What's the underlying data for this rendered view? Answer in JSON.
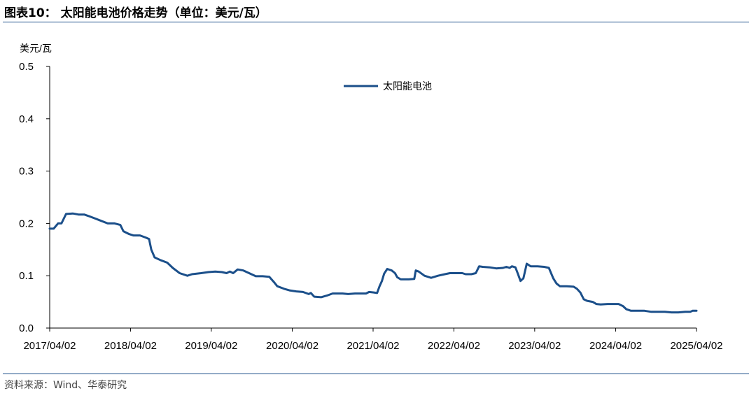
{
  "header": {
    "title": "图表10：   太阳能电池价格走势（单位：美元/瓦）"
  },
  "footer": {
    "source": "资料来源：Wind、华泰研究"
  },
  "chart_data": {
    "type": "line",
    "title": "",
    "ylabel": "美元/瓦",
    "xlabel": "",
    "ylim": [
      0,
      0.5
    ],
    "yticks": [
      "0.0",
      "0.1",
      "0.2",
      "0.3",
      "0.4",
      "0.5"
    ],
    "xlim": [
      "2017-04-02",
      "2025-04-02"
    ],
    "xticks": [
      "2017/04/02",
      "2018/04/02",
      "2019/04/02",
      "2020/04/02",
      "2021/04/02",
      "2022/04/02",
      "2023/04/02",
      "2024/04/02",
      "2025/04/02"
    ],
    "grid": false,
    "legend_position": "top-center",
    "series": [
      {
        "name": "太阳能电池",
        "color": "#1b4f8a",
        "points": [
          [
            "2017-04-02",
            0.19
          ],
          [
            "2017-04-20",
            0.19
          ],
          [
            "2017-05-10",
            0.2
          ],
          [
            "2017-05-25",
            0.2
          ],
          [
            "2017-06-15",
            0.218
          ],
          [
            "2017-07-15",
            0.219
          ],
          [
            "2017-08-10",
            0.217
          ],
          [
            "2017-09-05",
            0.217
          ],
          [
            "2017-09-25",
            0.214
          ],
          [
            "2017-10-20",
            0.21
          ],
          [
            "2017-11-20",
            0.205
          ],
          [
            "2017-12-20",
            0.2
          ],
          [
            "2018-01-20",
            0.2
          ],
          [
            "2018-02-15",
            0.197
          ],
          [
            "2018-03-01",
            0.185
          ],
          [
            "2018-03-25",
            0.18
          ],
          [
            "2018-04-15",
            0.177
          ],
          [
            "2018-05-15",
            0.177
          ],
          [
            "2018-06-10",
            0.173
          ],
          [
            "2018-06-25",
            0.17
          ],
          [
            "2018-07-05",
            0.15
          ],
          [
            "2018-07-20",
            0.135
          ],
          [
            "2018-08-15",
            0.13
          ],
          [
            "2018-09-15",
            0.125
          ],
          [
            "2018-10-10",
            0.115
          ],
          [
            "2018-11-10",
            0.105
          ],
          [
            "2018-12-15",
            0.1
          ],
          [
            "2019-01-05",
            0.103
          ],
          [
            "2019-02-15",
            0.105
          ],
          [
            "2019-03-20",
            0.107
          ],
          [
            "2019-04-20",
            0.108
          ],
          [
            "2019-05-20",
            0.107
          ],
          [
            "2019-06-10",
            0.105
          ],
          [
            "2019-06-25",
            0.108
          ],
          [
            "2019-07-10",
            0.105
          ],
          [
            "2019-07-30",
            0.112
          ],
          [
            "2019-08-25",
            0.11
          ],
          [
            "2019-09-25",
            0.104
          ],
          [
            "2019-10-20",
            0.099
          ],
          [
            "2019-11-20",
            0.099
          ],
          [
            "2019-12-20",
            0.098
          ],
          [
            "2020-01-10",
            0.088
          ],
          [
            "2020-01-25",
            0.08
          ],
          [
            "2020-02-25",
            0.075
          ],
          [
            "2020-03-20",
            0.072
          ],
          [
            "2020-04-20",
            0.07
          ],
          [
            "2020-05-20",
            0.069
          ],
          [
            "2020-06-15",
            0.065
          ],
          [
            "2020-06-25",
            0.067
          ],
          [
            "2020-07-10",
            0.06
          ],
          [
            "2020-08-10",
            0.059
          ],
          [
            "2020-09-05",
            0.062
          ],
          [
            "2020-10-01",
            0.066
          ],
          [
            "2020-11-15",
            0.066
          ],
          [
            "2020-12-10",
            0.065
          ],
          [
            "2021-01-10",
            0.066
          ],
          [
            "2021-02-10",
            0.066
          ],
          [
            "2021-03-01",
            0.066
          ],
          [
            "2021-03-15",
            0.069
          ],
          [
            "2021-04-05",
            0.068
          ],
          [
            "2021-04-20",
            0.067
          ],
          [
            "2021-05-01",
            0.08
          ],
          [
            "2021-05-12",
            0.09
          ],
          [
            "2021-05-22",
            0.104
          ],
          [
            "2021-06-05",
            0.113
          ],
          [
            "2021-06-25",
            0.11
          ],
          [
            "2021-07-10",
            0.105
          ],
          [
            "2021-07-20",
            0.097
          ],
          [
            "2021-08-05",
            0.093
          ],
          [
            "2021-09-10",
            0.093
          ],
          [
            "2021-10-05",
            0.094
          ],
          [
            "2021-10-12",
            0.11
          ],
          [
            "2021-10-25",
            0.108
          ],
          [
            "2021-11-20",
            0.1
          ],
          [
            "2021-12-20",
            0.096
          ],
          [
            "2022-01-20",
            0.1
          ],
          [
            "2022-02-20",
            0.103
          ],
          [
            "2022-03-15",
            0.105
          ],
          [
            "2022-04-15",
            0.105
          ],
          [
            "2022-05-10",
            0.105
          ],
          [
            "2022-05-25",
            0.103
          ],
          [
            "2022-06-20",
            0.103
          ],
          [
            "2022-07-10",
            0.105
          ],
          [
            "2022-07-25",
            0.118
          ],
          [
            "2022-08-10",
            0.117
          ],
          [
            "2022-09-10",
            0.116
          ],
          [
            "2022-10-10",
            0.114
          ],
          [
            "2022-11-10",
            0.115
          ],
          [
            "2022-11-25",
            0.117
          ],
          [
            "2022-12-10",
            0.115
          ],
          [
            "2022-12-20",
            0.118
          ],
          [
            "2023-01-05",
            0.116
          ],
          [
            "2023-01-15",
            0.105
          ],
          [
            "2023-01-28",
            0.09
          ],
          [
            "2023-02-10",
            0.095
          ],
          [
            "2023-02-25",
            0.123
          ],
          [
            "2023-03-15",
            0.118
          ],
          [
            "2023-04-15",
            0.118
          ],
          [
            "2023-05-15",
            0.117
          ],
          [
            "2023-06-05",
            0.115
          ],
          [
            "2023-06-25",
            0.095
          ],
          [
            "2023-07-10",
            0.085
          ],
          [
            "2023-07-25",
            0.08
          ],
          [
            "2023-08-25",
            0.08
          ],
          [
            "2023-09-25",
            0.079
          ],
          [
            "2023-10-10",
            0.075
          ],
          [
            "2023-10-25",
            0.068
          ],
          [
            "2023-11-10",
            0.055
          ],
          [
            "2023-11-25",
            0.052
          ],
          [
            "2023-12-20",
            0.05
          ],
          [
            "2024-01-05",
            0.046
          ],
          [
            "2024-01-25",
            0.045
          ],
          [
            "2024-02-25",
            0.046
          ],
          [
            "2024-03-25",
            0.046
          ],
          [
            "2024-04-15",
            0.046
          ],
          [
            "2024-05-05",
            0.042
          ],
          [
            "2024-05-20",
            0.036
          ],
          [
            "2024-06-10",
            0.033
          ],
          [
            "2024-07-10",
            0.033
          ],
          [
            "2024-08-10",
            0.033
          ],
          [
            "2024-09-10",
            0.031
          ],
          [
            "2024-10-10",
            0.031
          ],
          [
            "2024-11-10",
            0.031
          ],
          [
            "2024-12-10",
            0.03
          ],
          [
            "2025-01-10",
            0.03
          ],
          [
            "2025-02-10",
            0.031
          ],
          [
            "2025-03-05",
            0.031
          ],
          [
            "2025-03-15",
            0.033
          ],
          [
            "2025-04-02",
            0.033
          ]
        ]
      }
    ]
  }
}
